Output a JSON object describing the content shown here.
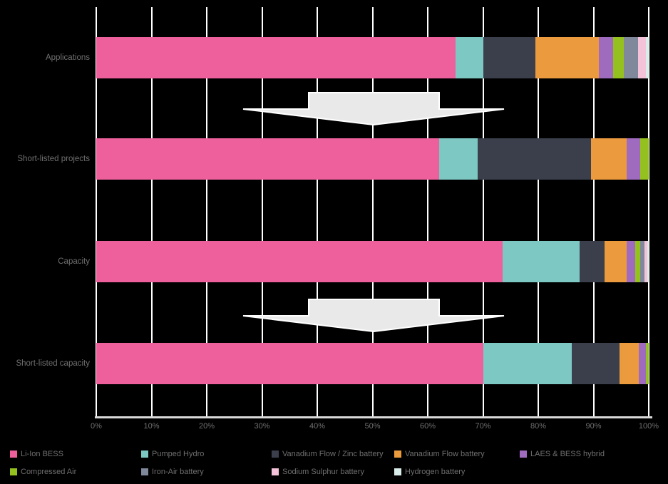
{
  "chart_data": {
    "type": "bar",
    "orientation": "horizontal",
    "stacked": true,
    "unit": "%",
    "title": "",
    "categories": [
      "Applications",
      "Short-listed projects",
      "Capacity",
      "Short-listed capacity"
    ],
    "series": [
      {
        "name": "Li-Ion BESS",
        "color": "#EE609C",
        "values": [
          65,
          62,
          73.5,
          70
        ]
      },
      {
        "name": "Pumped Hydro",
        "color": "#7DC8C2",
        "values": [
          5,
          7,
          14,
          16
        ]
      },
      {
        "name": "Vanadium Flow / Zinc battery",
        "color": "#3A3F4B",
        "values": [
          9.5,
          20.5,
          4.5,
          8.75
        ]
      },
      {
        "name": "Vanadium Flow battery",
        "color": "#EB9A3D",
        "values": [
          11.5,
          6.5,
          4,
          3.5
        ]
      },
      {
        "name": "LAES & BESS hybrid",
        "color": "#9F6BBF",
        "values": [
          2.5,
          2.5,
          1.5,
          1.25
        ]
      },
      {
        "name": "Compressed Air",
        "color": "#95C11F",
        "values": [
          2,
          1.5,
          1,
          0.5
        ]
      },
      {
        "name": "Iron-Air battery",
        "color": "#7F899B",
        "values": [
          2.5,
          0,
          0.75,
          0
        ]
      },
      {
        "name": "Sodium Sulphur battery",
        "color": "#F4C3D9",
        "values": [
          1.5,
          0,
          0.5,
          0
        ]
      },
      {
        "name": "Hydrogen battery",
        "color": "#D8ECE9",
        "values": [
          0.5,
          0,
          0.25,
          0
        ]
      }
    ],
    "x_axis": {
      "min": 0,
      "max": 100,
      "ticks": [
        "0%",
        "10%",
        "20%",
        "30%",
        "40%",
        "50%",
        "60%",
        "70%",
        "80%",
        "90%",
        "100%"
      ],
      "gridlines": true
    },
    "legend_position": "bottom",
    "annotations": [
      "large down arrow between Applications and Short-listed projects",
      "large down arrow between Capacity and Short-listed capacity"
    ]
  },
  "styles": {
    "background": "#000000",
    "grid_color": "#FFFFFF",
    "axis_color": "#D9D9D9",
    "text_color": "#6F6F6F",
    "arrow_fill": "#E9E9E9",
    "arrow_stroke": "#FFFFFF"
  }
}
